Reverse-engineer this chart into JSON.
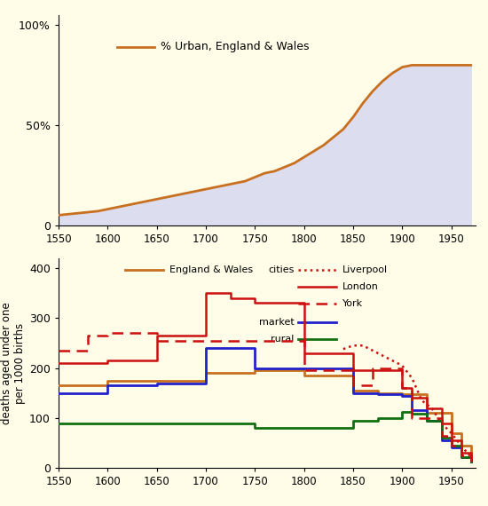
{
  "bg_color": "#FFFDE8",
  "fill_color_top": "#DDDDF0",
  "urban_color": "#C87020",
  "urban_x": [
    1550,
    1560,
    1570,
    1580,
    1590,
    1600,
    1610,
    1620,
    1630,
    1640,
    1650,
    1660,
    1670,
    1680,
    1690,
    1700,
    1710,
    1720,
    1730,
    1740,
    1750,
    1760,
    1770,
    1780,
    1790,
    1800,
    1810,
    1820,
    1830,
    1840,
    1850,
    1860,
    1870,
    1880,
    1890,
    1900,
    1910,
    1920,
    1930,
    1940,
    1950,
    1960,
    1970
  ],
  "urban_y": [
    5,
    5.5,
    6,
    6.5,
    7,
    8,
    9,
    10,
    11,
    12,
    13,
    14,
    15,
    16,
    17,
    18,
    19,
    20,
    21,
    22,
    24,
    26,
    27,
    29,
    31,
    34,
    37,
    40,
    44,
    48,
    54,
    61,
    67,
    72,
    76,
    79,
    80,
    80,
    80,
    80,
    80,
    80,
    80
  ],
  "england_wales_color": "#C87020",
  "england_wales_x": [
    1550,
    1600,
    1650,
    1700,
    1750,
    1800,
    1850,
    1875,
    1900,
    1925,
    1950,
    1960,
    1970
  ],
  "england_wales_y": [
    165,
    175,
    175,
    190,
    195,
    185,
    155,
    150,
    148,
    110,
    70,
    45,
    20
  ],
  "london_color": "#CC1010",
  "london_x": [
    1550,
    1600,
    1650,
    1700,
    1725,
    1750,
    1800,
    1850,
    1875,
    1900,
    1910,
    1925,
    1940,
    1950,
    1960,
    1970
  ],
  "london_y": [
    210,
    215,
    265,
    350,
    340,
    330,
    230,
    195,
    195,
    160,
    140,
    120,
    90,
    55,
    30,
    18
  ],
  "york_color": "#CC1010",
  "york_x": [
    1550,
    1580,
    1600,
    1650,
    1700,
    1750,
    1800,
    1840,
    1850,
    1870,
    1900,
    1910,
    1920,
    1940,
    1950,
    1960,
    1970
  ],
  "york_y": [
    235,
    265,
    270,
    255,
    255,
    255,
    195,
    195,
    165,
    200,
    160,
    100,
    100,
    65,
    45,
    25,
    12
  ],
  "liverpool_color": "#CC1010",
  "liverpool_x": [
    1840,
    1850,
    1860,
    1870,
    1875,
    1880,
    1890,
    1895,
    1900,
    1910,
    1920,
    1930,
    1940,
    1950,
    1960,
    1970
  ],
  "liverpool_y": [
    238,
    245,
    245,
    235,
    230,
    225,
    215,
    210,
    205,
    180,
    135,
    120,
    90,
    70,
    45,
    22
  ],
  "market_color": "#2222CC",
  "market_x": [
    1550,
    1600,
    1650,
    1700,
    1750,
    1800,
    1850,
    1875,
    1900,
    1910,
    1925,
    1940,
    1950,
    1960,
    1970
  ],
  "market_y": [
    150,
    165,
    170,
    240,
    200,
    200,
    150,
    148,
    145,
    115,
    95,
    55,
    42,
    22,
    12
  ],
  "rural_color": "#107010",
  "rural_x": [
    1550,
    1600,
    1650,
    1700,
    1750,
    1800,
    1850,
    1875,
    1900,
    1910,
    1925,
    1940,
    1950,
    1960,
    1970
  ],
  "rural_y": [
    90,
    90,
    90,
    90,
    80,
    80,
    95,
    100,
    112,
    108,
    95,
    60,
    45,
    22,
    12
  ],
  "yticks_top": [
    0,
    50,
    100
  ],
  "ytick_labels_top": [
    "0",
    "50%",
    "100%"
  ],
  "yticks_bot": [
    0,
    100,
    200,
    300,
    400
  ],
  "xticks": [
    1550,
    1600,
    1650,
    1700,
    1750,
    1800,
    1850,
    1900,
    1950
  ]
}
